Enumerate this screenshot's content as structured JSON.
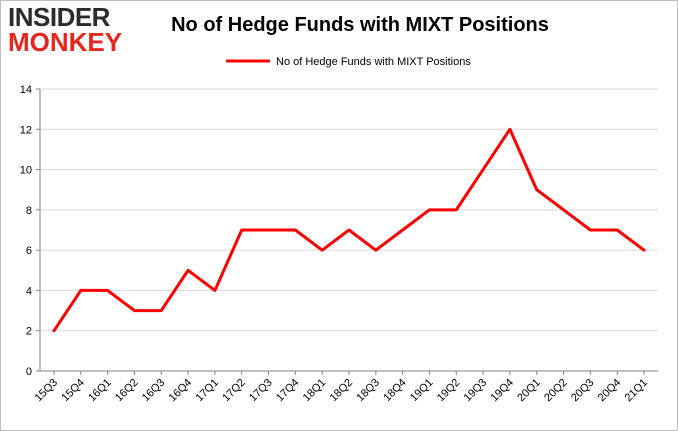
{
  "logo": {
    "line1": "INSIDER",
    "line2": "MONKEY"
  },
  "chart_data": {
    "type": "line",
    "title": "No of Hedge Funds with MIXT Positions",
    "xlabel": "",
    "ylabel": "",
    "categories": [
      "15Q3",
      "15Q4",
      "16Q1",
      "16Q2",
      "16Q3",
      "16Q4",
      "17Q1",
      "17Q2",
      "17Q3",
      "17Q4",
      "18Q1",
      "18Q2",
      "18Q3",
      "18Q4",
      "19Q1",
      "19Q2",
      "19Q3",
      "19Q4",
      "20Q1",
      "20Q2",
      "20Q3",
      "20Q4",
      "21Q1"
    ],
    "series": [
      {
        "name": "No of Hedge Funds with MIXT Positions",
        "color": "#ff0000",
        "values": [
          2,
          4,
          4,
          3,
          3,
          5,
          4,
          7,
          7,
          7,
          6,
          7,
          6,
          7,
          8,
          8,
          10,
          12,
          9,
          8,
          7,
          7,
          6
        ]
      }
    ],
    "ylim": [
      0,
      14
    ],
    "yticks": [
      0,
      2,
      4,
      6,
      8,
      10,
      12,
      14
    ],
    "grid": true,
    "legend_position": "top-center"
  },
  "colors": {
    "line": "#ff0000",
    "grid": "#d9d9d9",
    "axis": "#868686",
    "logo_dark": "#2b2b2b",
    "logo_red": "#e8261f"
  }
}
